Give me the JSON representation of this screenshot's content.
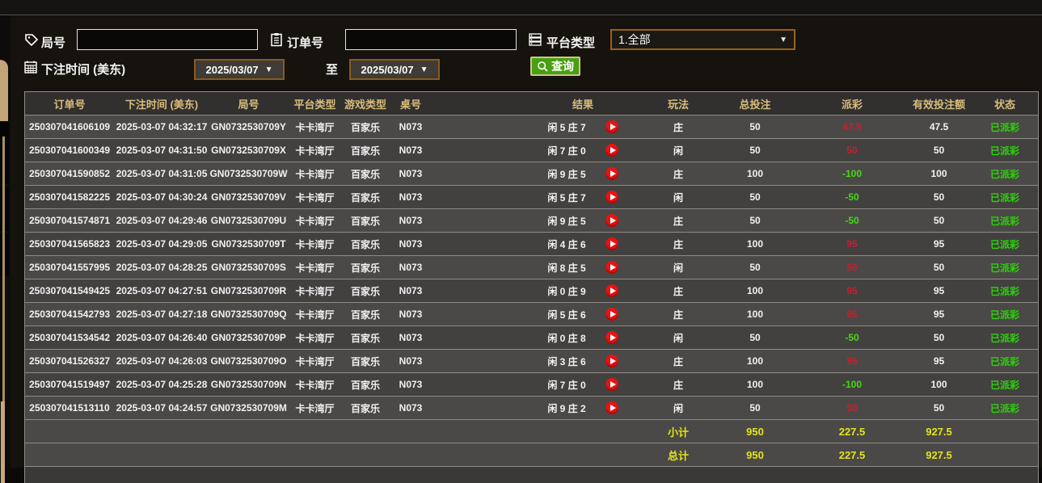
{
  "filters": {
    "game_no_label": "局号",
    "order_no_label": "订单号",
    "platform_type_label": "平台类型",
    "platform_type_value": "1.全部",
    "bet_time_label": "下注时间 (美东)",
    "date_from": "2025/03/07",
    "date_to": "2025/03/07",
    "to_label": "至",
    "search_label": "查询",
    "game_no_value": "",
    "order_no_value": ""
  },
  "table": {
    "columns": [
      {
        "key": "order_no",
        "label": "订单号"
      },
      {
        "key": "bet_time",
        "label": "下注时间 (美东)"
      },
      {
        "key": "game_no",
        "label": "局号"
      },
      {
        "key": "platform",
        "label": "平台类型"
      },
      {
        "key": "game_type",
        "label": "游戏类型"
      },
      {
        "key": "table_no",
        "label": "桌号"
      },
      {
        "key": "result",
        "label": "结果"
      },
      {
        "key": "play_type",
        "label": "玩法"
      },
      {
        "key": "total_bet",
        "label": "总投注"
      },
      {
        "key": "payout",
        "label": "派彩"
      },
      {
        "key": "valid_bet",
        "label": "有效投注额"
      },
      {
        "key": "status",
        "label": "状态"
      }
    ],
    "rows": [
      {
        "order_no": "250307041606109",
        "bet_time": "2025-03-07 04:32:17",
        "game_no": "GN0732530709Y",
        "platform": "卡卡湾厅",
        "game_type": "百家乐",
        "table_no": "N073",
        "result": "闲 5 庄 7",
        "play_type": "庄",
        "total_bet": "50",
        "payout": "47.5",
        "valid_bet": "47.5",
        "status": "已派彩"
      },
      {
        "order_no": "250307041600349",
        "bet_time": "2025-03-07 04:31:50",
        "game_no": "GN0732530709X",
        "platform": "卡卡湾厅",
        "game_type": "百家乐",
        "table_no": "N073",
        "result": "闲 7 庄 0",
        "play_type": "闲",
        "total_bet": "50",
        "payout": "50",
        "valid_bet": "50",
        "status": "已派彩"
      },
      {
        "order_no": "250307041590852",
        "bet_time": "2025-03-07 04:31:05",
        "game_no": "GN0732530709W",
        "platform": "卡卡湾厅",
        "game_type": "百家乐",
        "table_no": "N073",
        "result": "闲 9 庄 5",
        "play_type": "庄",
        "total_bet": "100",
        "payout": "-100",
        "valid_bet": "100",
        "status": "已派彩"
      },
      {
        "order_no": "250307041582225",
        "bet_time": "2025-03-07 04:30:24",
        "game_no": "GN0732530709V",
        "platform": "卡卡湾厅",
        "game_type": "百家乐",
        "table_no": "N073",
        "result": "闲 5 庄 7",
        "play_type": "闲",
        "total_bet": "50",
        "payout": "-50",
        "valid_bet": "50",
        "status": "已派彩"
      },
      {
        "order_no": "250307041574871",
        "bet_time": "2025-03-07 04:29:46",
        "game_no": "GN0732530709U",
        "platform": "卡卡湾厅",
        "game_type": "百家乐",
        "table_no": "N073",
        "result": "闲 9 庄 5",
        "play_type": "庄",
        "total_bet": "50",
        "payout": "-50",
        "valid_bet": "50",
        "status": "已派彩"
      },
      {
        "order_no": "250307041565823",
        "bet_time": "2025-03-07 04:29:05",
        "game_no": "GN0732530709T",
        "platform": "卡卡湾厅",
        "game_type": "百家乐",
        "table_no": "N073",
        "result": "闲 4 庄 6",
        "play_type": "庄",
        "total_bet": "100",
        "payout": "95",
        "valid_bet": "95",
        "status": "已派彩"
      },
      {
        "order_no": "250307041557995",
        "bet_time": "2025-03-07 04:28:25",
        "game_no": "GN0732530709S",
        "platform": "卡卡湾厅",
        "game_type": "百家乐",
        "table_no": "N073",
        "result": "闲 8 庄 5",
        "play_type": "闲",
        "total_bet": "50",
        "payout": "50",
        "valid_bet": "50",
        "status": "已派彩"
      },
      {
        "order_no": "250307041549425",
        "bet_time": "2025-03-07 04:27:51",
        "game_no": "GN0732530709R",
        "platform": "卡卡湾厅",
        "game_type": "百家乐",
        "table_no": "N073",
        "result": "闲 0 庄 9",
        "play_type": "庄",
        "total_bet": "100",
        "payout": "95",
        "valid_bet": "95",
        "status": "已派彩"
      },
      {
        "order_no": "250307041542793",
        "bet_time": "2025-03-07 04:27:18",
        "game_no": "GN0732530709Q",
        "platform": "卡卡湾厅",
        "game_type": "百家乐",
        "table_no": "N073",
        "result": "闲 5 庄 6",
        "play_type": "庄",
        "total_bet": "100",
        "payout": "95",
        "valid_bet": "95",
        "status": "已派彩"
      },
      {
        "order_no": "250307041534542",
        "bet_time": "2025-03-07 04:26:40",
        "game_no": "GN0732530709P",
        "platform": "卡卡湾厅",
        "game_type": "百家乐",
        "table_no": "N073",
        "result": "闲 0 庄 8",
        "play_type": "闲",
        "total_bet": "50",
        "payout": "-50",
        "valid_bet": "50",
        "status": "已派彩"
      },
      {
        "order_no": "250307041526327",
        "bet_time": "2025-03-07 04:26:03",
        "game_no": "GN0732530709O",
        "platform": "卡卡湾厅",
        "game_type": "百家乐",
        "table_no": "N073",
        "result": "闲 3 庄 6",
        "play_type": "庄",
        "total_bet": "100",
        "payout": "95",
        "valid_bet": "95",
        "status": "已派彩"
      },
      {
        "order_no": "250307041519497",
        "bet_time": "2025-03-07 04:25:28",
        "game_no": "GN0732530709N",
        "platform": "卡卡湾厅",
        "game_type": "百家乐",
        "table_no": "N073",
        "result": "闲 7 庄 0",
        "play_type": "庄",
        "total_bet": "100",
        "payout": "-100",
        "valid_bet": "100",
        "status": "已派彩"
      },
      {
        "order_no": "250307041513110",
        "bet_time": "2025-03-07 04:24:57",
        "game_no": "GN0732530709M",
        "platform": "卡卡湾厅",
        "game_type": "百家乐",
        "table_no": "N073",
        "result": "闲 9 庄 2",
        "play_type": "闲",
        "total_bet": "50",
        "payout": "50",
        "valid_bet": "50",
        "status": "已派彩"
      }
    ],
    "subtotal": {
      "label": "小计",
      "total_bet": "950",
      "payout": "227.5",
      "valid_bet": "927.5"
    },
    "total": {
      "label": "总计",
      "total_bet": "950",
      "payout": "227.5",
      "valid_bet": "927.5"
    }
  },
  "colors": {
    "header_text": "#d8bc7c",
    "win_red": "#c81e2e",
    "loss_green": "#44d911",
    "status_green": "#2bd30a",
    "summary_yellow": "#e3e41c",
    "button_green": "#48a00e",
    "select_border_orange": "#9a6118",
    "button_border_khaki": "#cdc68e",
    "row_bg": "#4b4947",
    "header_bg": "#31302e"
  },
  "icons": {
    "game_no": "tag-icon",
    "order_no": "clipboard-icon",
    "bet_time": "calendar-icon",
    "platform_type": "server-icon",
    "search": "search-icon",
    "result_replay": "play-icon"
  }
}
